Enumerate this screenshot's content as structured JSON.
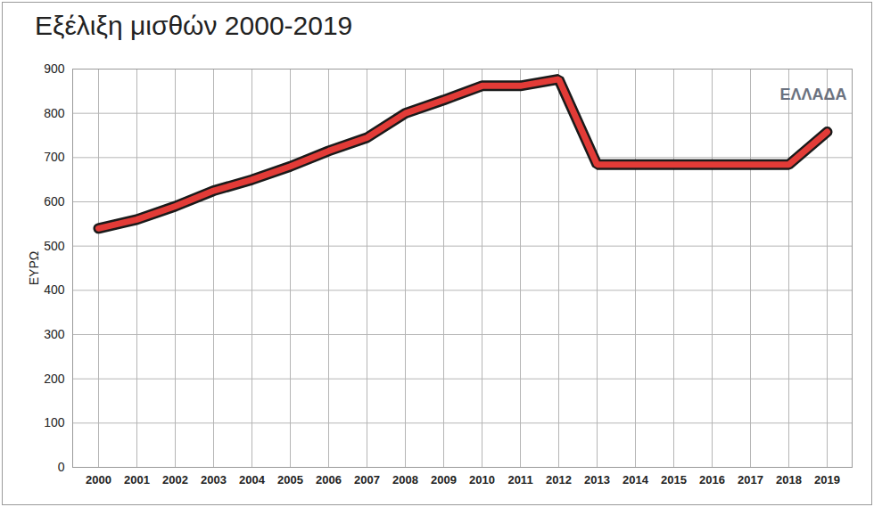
{
  "chart_data": {
    "type": "line",
    "title": "Εξέλιξη μισθών 2000-2019",
    "y_label": "ΕΥΡΩ",
    "annotation": "ΕΛΛΑΔΑ",
    "categories": [
      "2000",
      "2001",
      "2002",
      "2003",
      "2004",
      "2005",
      "2006",
      "2007",
      "2008",
      "2009",
      "2010",
      "2011",
      "2012",
      "2013",
      "2014",
      "2015",
      "2016",
      "2017",
      "2018",
      "2019"
    ],
    "values": [
      540,
      560,
      590,
      625,
      650,
      680,
      715,
      745,
      800,
      830,
      862,
      862,
      877,
      684,
      684,
      684,
      684,
      684,
      684,
      758
    ],
    "color": "#e23b37",
    "ylim": [
      0,
      900
    ],
    "yticks": [
      0,
      100,
      200,
      300,
      400,
      500,
      600,
      700,
      800,
      900
    ],
    "grid": true
  }
}
